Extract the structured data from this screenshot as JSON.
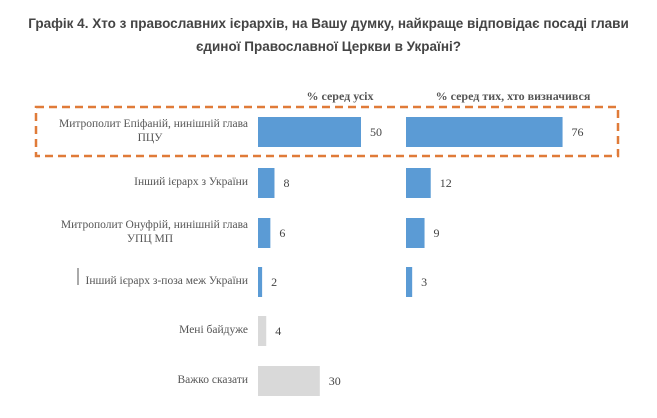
{
  "chart_data": {
    "type": "bar",
    "orientation": "horizontal",
    "title_line1": "Графік 4. Хто з православних ієрархів, на Вашу думку, найкраще відповідає посаді глави",
    "title_line2": "єдиної Православної Церкви в Україні?",
    "categories": [
      [
        "Митрополит Епіфаній, нинішній глава",
        "ПЦУ"
      ],
      [
        "Інший ієрарх з України"
      ],
      [
        "Митрополит Онуфрій, нинішній глава",
        "УПЦ МП"
      ],
      [
        "Інший ієрарх з-поза меж України"
      ],
      [
        "Мені байдуже"
      ],
      [
        "Важко сказати"
      ]
    ],
    "series": [
      {
        "name": "% серед усіх",
        "values": [
          50,
          8,
          6,
          2,
          4,
          30
        ]
      },
      {
        "name": "% серед тих, хто визначився",
        "values": [
          76,
          12,
          9,
          3,
          null,
          null
        ]
      }
    ],
    "highlighted_category": 0,
    "colors": {
      "primary": "#5b9bd5",
      "neutral": "#d9d9d9",
      "highlight_border": "#e07b39"
    },
    "xlim": [
      0,
      100
    ],
    "grid": false,
    "legend": "none"
  }
}
